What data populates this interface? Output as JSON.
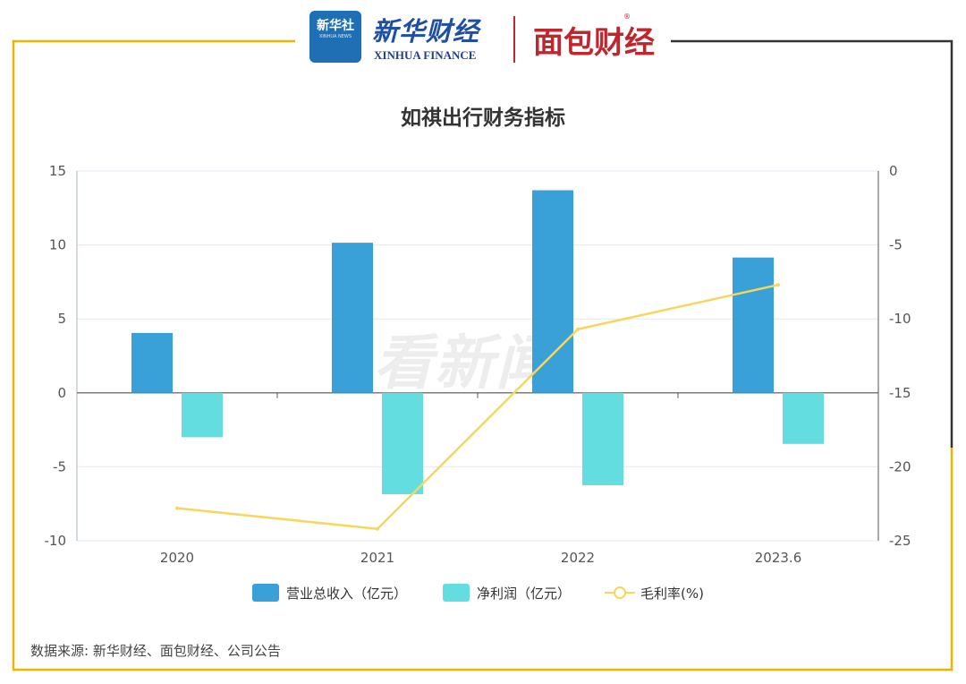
{
  "header": {
    "xinhua_badge": "新华社",
    "xinhua_badge_sub": "XINHUA NEWS",
    "xinhua_name": "新华财经",
    "xinhua_name_en": "XINHUA FINANCE",
    "mianbao_name": "面包财经",
    "registered_mark": "®"
  },
  "watermark": "看新闻",
  "legend": {
    "revenue": "营业总收入（亿元）",
    "net_profit": "净利润（亿元）",
    "gross_margin": "毛利率(%)"
  },
  "source": "数据来源: 新华财经、面包财经、公司公告",
  "colors": {
    "revenue": "#3aa0d8",
    "net_profit": "#63dde0",
    "gross_margin": "#f7d65c",
    "frame_gold": "#f0b400",
    "frame_dark": "#333333"
  },
  "chart_data": {
    "type": "bar",
    "title": "如祺出行财务指标",
    "categories": [
      "2020",
      "2021",
      "2022",
      "2023.6"
    ],
    "series": [
      {
        "name": "营业总收入（亿元）",
        "type": "bar",
        "axis": "left",
        "values": [
          4.05,
          10.15,
          13.7,
          9.15
        ]
      },
      {
        "name": "净利润（亿元）",
        "type": "bar",
        "axis": "left",
        "values": [
          -3.0,
          -6.85,
          -6.25,
          -3.45
        ]
      },
      {
        "name": "毛利率(%)",
        "type": "line",
        "axis": "right",
        "values": [
          -22.8,
          -24.2,
          -10.7,
          -7.7
        ]
      }
    ],
    "y_left": {
      "min": -10,
      "max": 15,
      "ticks": [
        "15",
        "10",
        "5",
        "0",
        "-5",
        "-10"
      ]
    },
    "y_right": {
      "min": -25,
      "max": 0,
      "ticks": [
        "0",
        "-5",
        "-10",
        "-15",
        "-20",
        "-25"
      ]
    },
    "grid": true,
    "legend_position": "bottom"
  }
}
